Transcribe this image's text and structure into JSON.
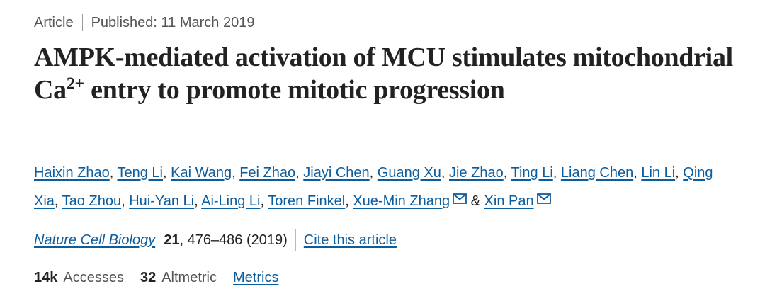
{
  "header": {
    "article_type": "Article",
    "published": "Published: 11 March 2019"
  },
  "title": {
    "part1": "AMPK-mediated activation of MCU stimulates mitochondrial Ca",
    "superscript": "2+",
    "part2": " entry to promote mitotic progression"
  },
  "authors": [
    "Haixin Zhao",
    "Teng Li",
    "Kai Wang",
    "Fei Zhao",
    "Jiayi Chen",
    "Guang Xu",
    "Jie Zhao",
    "Ting Li",
    "Liang Chen",
    "Lin Li",
    "Qing Xia",
    "Tao Zhou",
    "Hui-Yan Li",
    "Ai-Ling Li",
    "Toren Finkel",
    "Xue-Min Zhang",
    "Xin Pan"
  ],
  "author_separator": ", ",
  "author_conjunction": "&",
  "journal": {
    "name": "Nature Cell Biology",
    "volume": "21",
    "pages_year": ", 476–486 (2019)",
    "cite_link": "Cite this article"
  },
  "metrics": {
    "accesses_value": "14k",
    "accesses_label": "Accesses",
    "altmetric_value": "32",
    "altmetric_label": "Altmetric",
    "metrics_link": "Metrics"
  },
  "colors": {
    "link": "#0c5d9e",
    "text": "#222222",
    "muted": "#555555"
  },
  "icons": {
    "corresponding_author": "envelope-icon"
  }
}
